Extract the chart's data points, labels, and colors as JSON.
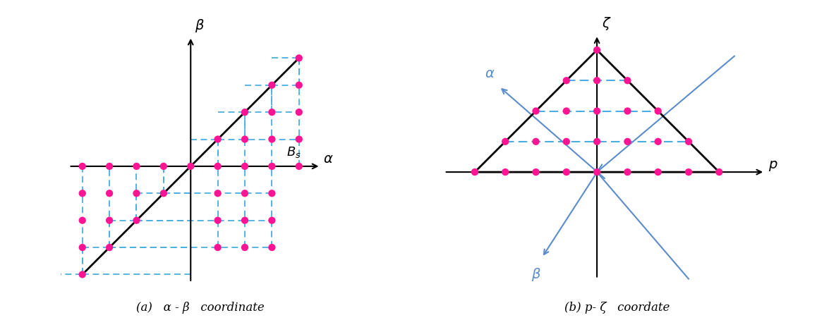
{
  "fig_width": 11.58,
  "fig_height": 4.54,
  "background_color": "#ffffff",
  "dot_color": "#FF1493",
  "dot_size": 55,
  "axis_color": "#000000",
  "dashed_color": "#4AAFE0",
  "blue_line_color": "#5B8CCC",
  "label_a": "(a)   α - β   coordinate",
  "label_b": "(b) p- ζ   coordate",
  "caption_fontsize": 12
}
